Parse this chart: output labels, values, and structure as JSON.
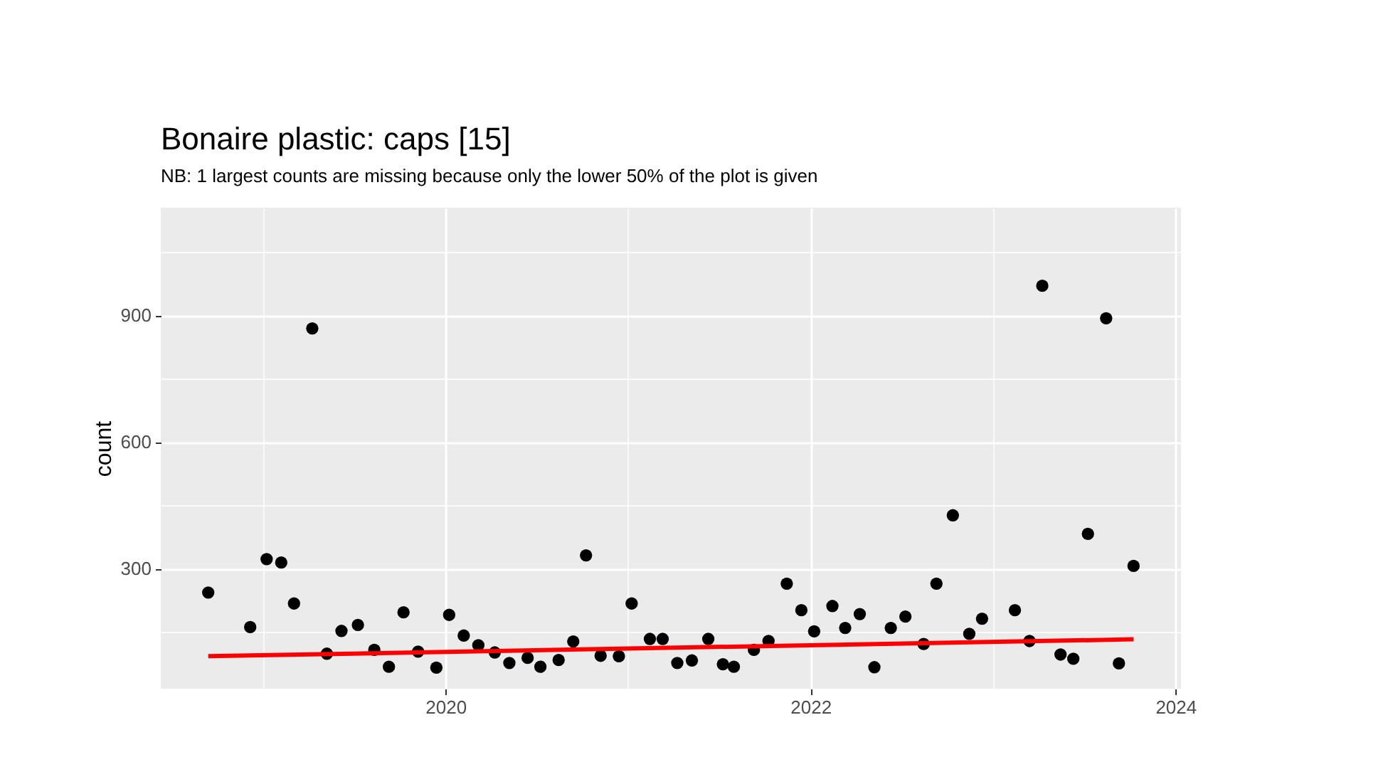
{
  "chart_data": {
    "type": "scatter",
    "title": "Bonaire  plastic: caps [15]",
    "subtitle": "NB: 1 largest counts are missing because only the lower 50% of the plot is given",
    "ylabel": "count",
    "xlim": [
      2018.44,
      2024.03
    ],
    "ylim": [
      15,
      1155
    ],
    "xticks": [
      {
        "value": 2019,
        "label": null
      },
      {
        "value": 2020,
        "label": "2020"
      },
      {
        "value": 2021,
        "label": null
      },
      {
        "value": 2022,
        "label": "2022"
      },
      {
        "value": 2023,
        "label": null
      },
      {
        "value": 2024,
        "label": "2024"
      }
    ],
    "yticks": [
      {
        "value": 150,
        "label": null
      },
      300,
      {
        "value": 450,
        "label": null
      },
      600,
      {
        "value": 750,
        "label": null
      },
      900,
      {
        "value": 1050,
        "label": null
      }
    ],
    "grid": true,
    "marker": "circle",
    "series": [
      {
        "color": "#000000",
        "x": [
          2018.7,
          2018.93,
          2019.02,
          2019.1,
          2019.17,
          2019.27,
          2019.35,
          2019.43,
          2019.52,
          2019.61,
          2019.69,
          2019.77,
          2019.85,
          2019.95,
          2020.02,
          2020.1,
          2020.18,
          2020.27,
          2020.35,
          2020.45,
          2020.52,
          2020.62,
          2020.7,
          2020.77,
          2020.85,
          2020.95,
          2021.02,
          2021.12,
          2021.19,
          2021.27,
          2021.35,
          2021.44,
          2021.52,
          2021.58,
          2021.69,
          2021.77,
          2021.87,
          2021.95,
          2022.02,
          2022.12,
          2022.19,
          2022.27,
          2022.35,
          2022.44,
          2022.52,
          2022.62,
          2022.69,
          2022.78,
          2022.87,
          2022.94,
          2023.12,
          2023.2,
          2023.27,
          2023.37,
          2023.44,
          2023.52,
          2023.62,
          2023.69,
          2023.77
        ],
        "values": [
          243,
          161,
          322,
          314,
          217,
          869,
          98,
          152,
          166,
          107,
          67,
          196,
          103,
          65,
          190,
          141,
          118,
          101,
          76,
          88,
          67,
          83,
          127,
          331,
          93,
          92,
          217,
          133,
          133,
          76,
          82,
          133,
          73,
          67,
          107,
          128,
          264,
          201,
          151,
          211,
          159,
          192,
          66,
          159,
          186,
          121,
          264,
          426,
          145,
          181,
          201,
          128,
          970,
          96,
          86,
          382,
          893,
          75,
          306
        ]
      },
      {
        "type": "line",
        "color": "#ff0000",
        "line_style": "solid",
        "marker": "none",
        "x": [
          2018.7,
          2023.77
        ],
        "values": [
          92,
          132
        ]
      }
    ]
  }
}
